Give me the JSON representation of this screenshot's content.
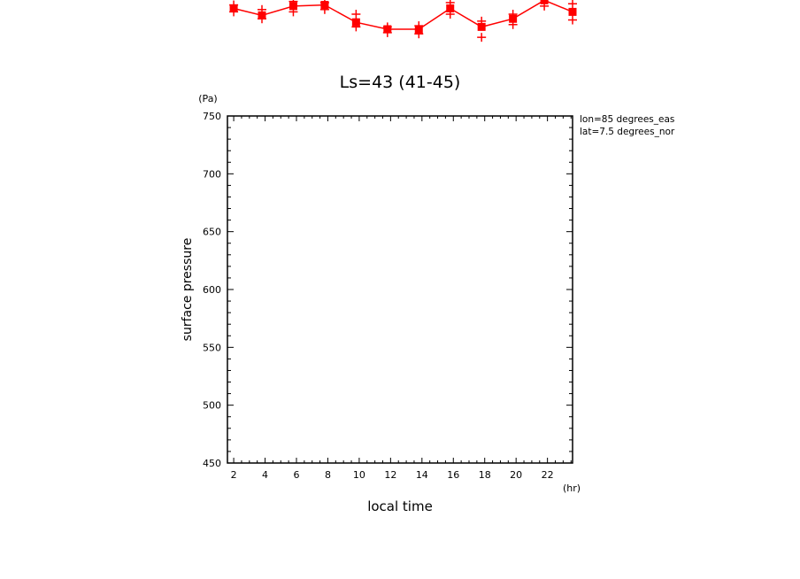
{
  "chart_data": {
    "type": "line",
    "title": "Ls=43 (41-45)",
    "xlabel": "local time",
    "ylabel": "surface pressure",
    "x_unit": "(hr)",
    "y_unit": "(Pa)",
    "annotations": [
      "lon=85 degrees_eas",
      "lat=7.5 degrees_nor"
    ],
    "xlim": [
      1.6,
      23.6
    ],
    "ylim": [
      450,
      750
    ],
    "xticks": [
      2,
      4,
      6,
      8,
      10,
      12,
      14,
      16,
      18,
      20,
      22
    ],
    "yticks": [
      450,
      500,
      550,
      600,
      650,
      700,
      750
    ],
    "grid": false,
    "legend": "none",
    "series": [
      {
        "color": "#ff0000",
        "x": [
          2,
          3.8,
          5.8,
          7.8,
          9.8,
          11.8,
          13.8,
          15.8,
          17.8,
          19.8,
          21.8,
          23.6
        ],
        "y": [
          843,
          837,
          845,
          846,
          831,
          825,
          825,
          843,
          827,
          834,
          850,
          840
        ],
        "upper": [
          846,
          842,
          849,
          848,
          838,
          827,
          828,
          848,
          832,
          838,
          854,
          847
        ],
        "lower": [
          840,
          834,
          840,
          842,
          827,
          822,
          821,
          838,
          818,
          829,
          845,
          833
        ]
      }
    ]
  }
}
